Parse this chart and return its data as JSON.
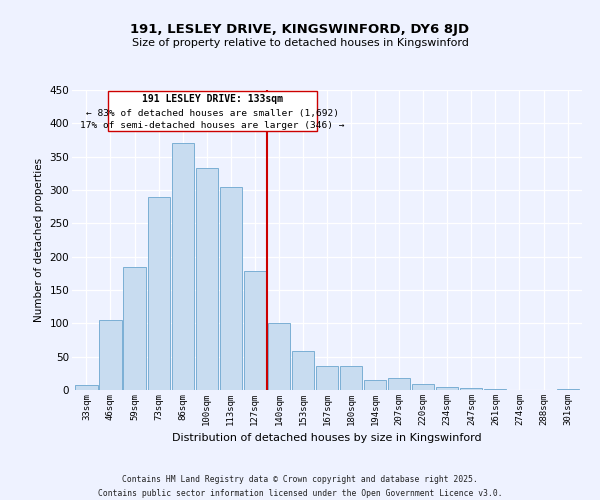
{
  "title": "191, LESLEY DRIVE, KINGSWINFORD, DY6 8JD",
  "subtitle": "Size of property relative to detached houses in Kingswinford",
  "xlabel": "Distribution of detached houses by size in Kingswinford",
  "ylabel": "Number of detached properties",
  "categories": [
    "33sqm",
    "46sqm",
    "59sqm",
    "73sqm",
    "86sqm",
    "100sqm",
    "113sqm",
    "127sqm",
    "140sqm",
    "153sqm",
    "167sqm",
    "180sqm",
    "194sqm",
    "207sqm",
    "220sqm",
    "234sqm",
    "247sqm",
    "261sqm",
    "274sqm",
    "288sqm",
    "301sqm"
  ],
  "values": [
    8,
    105,
    185,
    290,
    370,
    333,
    305,
    178,
    101,
    59,
    36,
    36,
    15,
    18,
    9,
    5,
    3,
    1,
    0,
    0,
    2
  ],
  "bar_color": "#c8dcf0",
  "bar_edge_color": "#7bafd4",
  "highlight_label": "191 LESLEY DRIVE: 133sqm",
  "annotation_line1": "← 83% of detached houses are smaller (1,692)",
  "annotation_line2": "17% of semi-detached houses are larger (346) →",
  "vline_color": "#cc0000",
  "ylim": [
    0,
    450
  ],
  "yticks": [
    0,
    50,
    100,
    150,
    200,
    250,
    300,
    350,
    400,
    450
  ],
  "bg_color": "#eef2ff",
  "grid_color": "#ffffff",
  "footnote1": "Contains HM Land Registry data © Crown copyright and database right 2025.",
  "footnote2": "Contains public sector information licensed under the Open Government Licence v3.0."
}
